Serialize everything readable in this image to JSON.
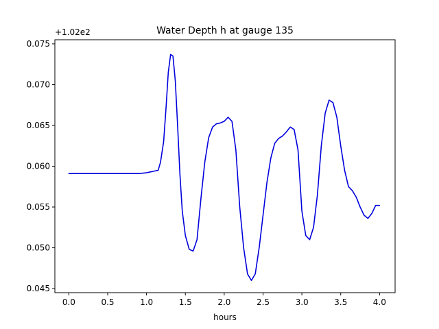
{
  "chart_data": {
    "type": "line",
    "title": "Water Depth h at gauge 135",
    "xlabel": "hours",
    "ylabel": "",
    "offset_label": "+1.02e2",
    "xlim": [
      -0.18,
      4.2
    ],
    "ylim": [
      0.0445,
      0.0755
    ],
    "xticks": [
      0.0,
      0.5,
      1.0,
      1.5,
      2.0,
      2.5,
      3.0,
      3.5,
      4.0
    ],
    "xtick_labels": [
      "0.0",
      "0.5",
      "1.0",
      "1.5",
      "2.0",
      "2.5",
      "3.0",
      "3.5",
      "4.0"
    ],
    "yticks": [
      0.045,
      0.05,
      0.055,
      0.06,
      0.065,
      0.07,
      0.075
    ],
    "ytick_labels": [
      "0.045",
      "0.050",
      "0.055",
      "0.060",
      "0.065",
      "0.070",
      "0.075"
    ],
    "grid": false,
    "series": [
      {
        "color": "#0000dd",
        "x": [
          0.0,
          0.3,
          0.6,
          0.9,
          1.0,
          1.05,
          1.1,
          1.15,
          1.18,
          1.22,
          1.25,
          1.28,
          1.31,
          1.34,
          1.37,
          1.4,
          1.43,
          1.46,
          1.5,
          1.55,
          1.6,
          1.65,
          1.7,
          1.75,
          1.8,
          1.85,
          1.9,
          1.95,
          2.0,
          2.05,
          2.1,
          2.15,
          2.2,
          2.25,
          2.3,
          2.35,
          2.4,
          2.45,
          2.5,
          2.55,
          2.6,
          2.65,
          2.7,
          2.75,
          2.8,
          2.85,
          2.9,
          2.95,
          3.0,
          3.05,
          3.1,
          3.15,
          3.2,
          3.25,
          3.3,
          3.35,
          3.4,
          3.45,
          3.5,
          3.55,
          3.6,
          3.65,
          3.7,
          3.75,
          3.8,
          3.85,
          3.9,
          3.95,
          4.0
        ],
        "y": [
          0.0591,
          0.0591,
          0.0591,
          0.0591,
          0.0592,
          0.0593,
          0.0594,
          0.0595,
          0.0605,
          0.063,
          0.067,
          0.0715,
          0.0737,
          0.0735,
          0.0705,
          0.065,
          0.059,
          0.0545,
          0.0515,
          0.0498,
          0.0496,
          0.051,
          0.056,
          0.0605,
          0.0635,
          0.0648,
          0.0652,
          0.0653,
          0.0655,
          0.066,
          0.0655,
          0.062,
          0.055,
          0.05,
          0.0468,
          0.046,
          0.0468,
          0.05,
          0.054,
          0.058,
          0.061,
          0.0628,
          0.0634,
          0.0637,
          0.0642,
          0.0648,
          0.0645,
          0.062,
          0.0545,
          0.0515,
          0.051,
          0.0525,
          0.0565,
          0.0625,
          0.0665,
          0.0681,
          0.0678,
          0.066,
          0.0625,
          0.0595,
          0.0575,
          0.057,
          0.0562,
          0.055,
          0.054,
          0.0536,
          0.0542,
          0.0552,
          0.0552
        ]
      }
    ]
  }
}
